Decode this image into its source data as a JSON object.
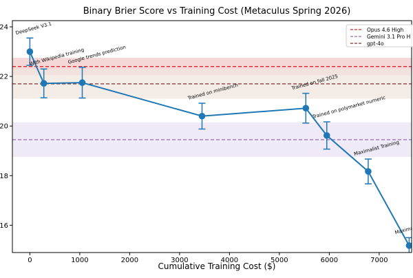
{
  "chart_data": {
    "type": "line",
    "title": "Binary Brier Score vs Training Cost (Metaculus Spring 2026)",
    "xlabel": "Cumulative Training Cost ($)",
    "ylabel": "",
    "xlim": [
      -350,
      7650
    ],
    "ylim": [
      14.9,
      24.25
    ],
    "xticks": [
      0,
      1000,
      2000,
      3000,
      4000,
      5000,
      6000,
      7000
    ],
    "yticks": [
      16,
      18,
      20,
      22,
      24
    ],
    "grid": false,
    "legend_position": "top-right",
    "series": [
      {
        "color": "#1f77b4",
        "x": [
          0,
          280,
          1050,
          3450,
          5530,
          5950,
          6780,
          7600
        ],
        "y": [
          23.0,
          21.72,
          21.75,
          20.4,
          20.72,
          19.62,
          18.17,
          15.18
        ],
        "error": [
          0.55,
          0.58,
          0.62,
          0.52,
          0.6,
          0.55,
          0.5,
          0.32
        ],
        "labels": [
          "DeepSeek V3.1",
          "With Wikipedia training",
          "Google trends prediction",
          "Trained on minibench",
          "Trained on fall 2025",
          "Trained on polymarket numeric",
          "Maximalist Training",
          "Maximalist T"
        ]
      }
    ],
    "baselines": [
      {
        "name": "Opus 4.6 High",
        "color": "#d62728",
        "value": 22.4,
        "band": [
          22.05,
          22.75
        ],
        "band_color": "#f3c9c9"
      },
      {
        "name": "Gemini 3.1 Pro H",
        "color": "#9467bd",
        "value": 19.45,
        "band": [
          18.75,
          20.15
        ],
        "band_color": "#ebe3f4"
      },
      {
        "name": "gpt-4o",
        "color": "#8c2d2d",
        "value": 21.7,
        "band": [
          21.1,
          22.3
        ],
        "band_color": "#efe6df"
      }
    ]
  }
}
